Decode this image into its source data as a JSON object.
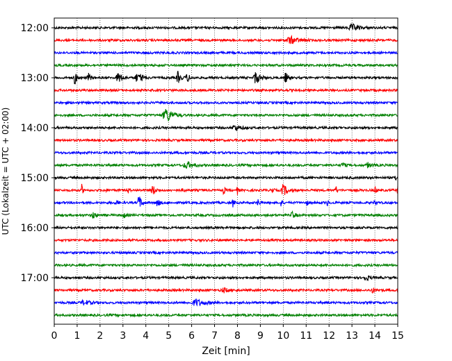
{
  "chart_data": {
    "type": "line",
    "title": "",
    "xlabel": "Zeit  [min]",
    "ylabel": "UTC (Lokalzeit = UTC + 02:00)",
    "xlim": [
      0,
      15
    ],
    "x_ticks": [
      "0",
      "1",
      "2",
      "3",
      "4",
      "5",
      "6",
      "7",
      "8",
      "9",
      "10",
      "11",
      "12",
      "13",
      "14",
      "15"
    ],
    "y_ticks": [
      "12:00",
      "13:00",
      "14:00",
      "15:00",
      "16:00",
      "17:00"
    ],
    "grid": "vertical dotted",
    "trace_interval_minutes": 15,
    "colors": [
      "#000000",
      "#ff0000",
      "#0000ff",
      "#008000"
    ],
    "series": [
      {
        "start": "12:00",
        "color": "#000000",
        "events": [
          [
            13.0,
            0.45,
            0.5
          ]
        ]
      },
      {
        "start": "12:15",
        "color": "#ff0000",
        "events": [
          [
            10.3,
            0.5,
            0.6
          ]
        ]
      },
      {
        "start": "12:30",
        "color": "#0000ff",
        "events": []
      },
      {
        "start": "12:45",
        "color": "#008000",
        "events": []
      },
      {
        "start": "13:00",
        "color": "#000000",
        "events": [
          [
            0.9,
            0.9,
            0.2
          ],
          [
            1.5,
            0.5,
            0.2
          ],
          [
            2.8,
            0.7,
            0.3
          ],
          [
            3.6,
            0.5,
            0.3
          ],
          [
            3.8,
            0.4,
            0.2
          ],
          [
            5.4,
            0.8,
            0.2
          ],
          [
            5.8,
            0.6,
            0.2
          ],
          [
            8.8,
            0.9,
            0.3
          ],
          [
            10.1,
            0.7,
            0.2
          ]
        ]
      },
      {
        "start": "13:15",
        "color": "#ff0000",
        "events": []
      },
      {
        "start": "13:30",
        "color": "#0000ff",
        "events": []
      },
      {
        "start": "13:45",
        "color": "#008000",
        "events": [
          [
            4.9,
            1.0,
            0.5
          ]
        ]
      },
      {
        "start": "14:00",
        "color": "#000000",
        "events": [
          [
            7.9,
            0.4,
            0.4
          ]
        ]
      },
      {
        "start": "14:15",
        "color": "#ff0000",
        "events": []
      },
      {
        "start": "14:30",
        "color": "#0000ff",
        "events": []
      },
      {
        "start": "14:45",
        "color": "#008000",
        "events": [
          [
            5.8,
            0.45,
            0.5
          ],
          [
            12.6,
            0.35,
            0.2
          ],
          [
            13.7,
            0.3,
            0.3
          ]
        ]
      },
      {
        "start": "15:00",
        "color": "#000000",
        "events": [
          [
            14.9,
            0.4,
            0.1
          ]
        ]
      },
      {
        "start": "15:15",
        "color": "#ff0000",
        "events": [
          [
            1.2,
            0.7,
            0.1
          ],
          [
            2.2,
            0.5,
            0.1
          ],
          [
            3.2,
            0.6,
            0.1
          ],
          [
            4.3,
            0.7,
            0.2
          ],
          [
            5.6,
            0.5,
            0.1
          ],
          [
            7.4,
            0.6,
            0.1
          ],
          [
            8.0,
            0.5,
            0.1
          ],
          [
            9.5,
            0.6,
            0.1
          ],
          [
            10.0,
            0.8,
            0.3
          ],
          [
            12.3,
            0.6,
            0.1
          ],
          [
            14.0,
            0.7,
            0.1
          ],
          [
            15.0,
            0.6,
            0.1
          ]
        ]
      },
      {
        "start": "15:30",
        "color": "#0000ff",
        "events": [
          [
            2.7,
            0.7,
            0.1
          ],
          [
            3.7,
            1.0,
            0.2
          ],
          [
            4.5,
            0.5,
            0.2
          ],
          [
            7.8,
            0.5,
            0.1
          ],
          [
            8.9,
            0.7,
            0.1
          ],
          [
            9.9,
            0.6,
            0.1
          ],
          [
            11.0,
            0.5,
            0.1
          ],
          [
            11.9,
            0.6,
            0.1
          ],
          [
            14.0,
            0.5,
            0.1
          ]
        ]
      },
      {
        "start": "15:45",
        "color": "#008000",
        "events": [
          [
            1.7,
            0.5,
            0.2
          ],
          [
            3.0,
            0.4,
            0.2
          ],
          [
            10.4,
            0.5,
            0.2
          ]
        ]
      },
      {
        "start": "16:00",
        "color": "#000000",
        "events": []
      },
      {
        "start": "16:15",
        "color": "#ff0000",
        "events": []
      },
      {
        "start": "16:30",
        "color": "#0000ff",
        "events": []
      },
      {
        "start": "16:45",
        "color": "#008000",
        "events": []
      },
      {
        "start": "17:00",
        "color": "#000000",
        "events": [
          [
            13.6,
            0.35,
            0.3
          ]
        ]
      },
      {
        "start": "17:15",
        "color": "#ff0000",
        "events": [
          [
            7.4,
            0.3,
            0.4
          ],
          [
            13.9,
            0.3,
            0.3
          ]
        ]
      },
      {
        "start": "17:30",
        "color": "#0000ff",
        "events": [
          [
            1.3,
            0.3,
            0.5
          ],
          [
            6.2,
            0.45,
            0.6
          ]
        ]
      },
      {
        "start": "17:45",
        "color": "#008000",
        "events": []
      }
    ]
  }
}
